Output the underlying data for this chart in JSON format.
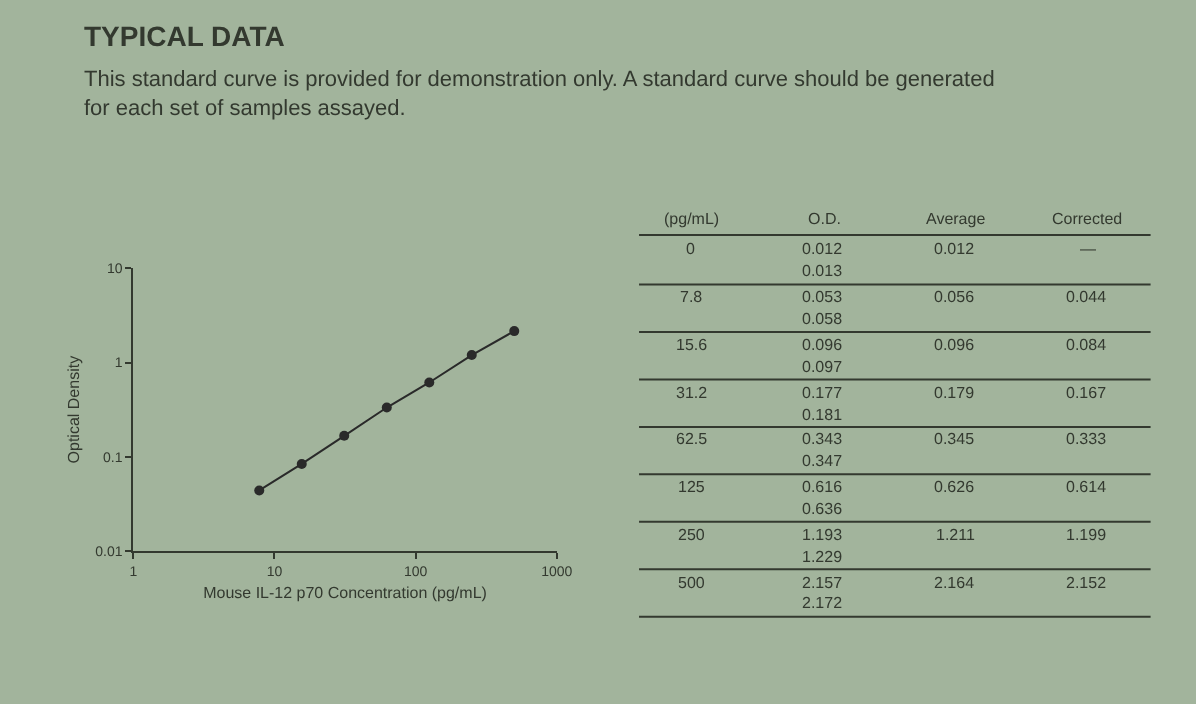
{
  "chart_data": [
    {
      "type": "line",
      "title": "TYPICAL DATA",
      "subtitle": "This standard curve is provided for demonstration only. A standard curve should be generated for each set of samples assayed.",
      "xlabel": "Mouse IL-12 p70 Concentration (pg/mL)",
      "ylabel": "Optical Density",
      "log": "xy",
      "x": [
        7.8,
        15.6,
        31.2,
        62.5,
        125,
        250,
        500
      ],
      "series": [
        {
          "color": "#2a2a2a",
          "values": [
            0.044,
            0.084,
            0.167,
            0.333,
            0.614,
            1.199,
            2.152
          ]
        }
      ],
      "xlim": [
        1,
        1000
      ],
      "xticks": [
        1,
        10,
        100,
        1000
      ],
      "ylim": [
        0.01,
        10
      ],
      "yticks": [
        0.01,
        0.1,
        1,
        10
      ],
      "marker": "circle",
      "line_style": "solid",
      "grid": false
    },
    {
      "type": "other",
      "data_labels": true,
      "xlabel": "(pg/mL)",
      "categories": [
        "0",
        "7.8",
        "15.6",
        "31.2",
        "62.5",
        "125",
        "250",
        "500"
      ],
      "series": [
        {
          "name": "O.D.",
          "values": [
            0.012,
            0.053,
            0.096,
            0.177,
            0.343,
            0.616,
            1.193,
            2.157
          ]
        },
        {
          "values": [
            0.013,
            0.058,
            0.097,
            0.181,
            0.347,
            0.636,
            1.229,
            2.172
          ]
        },
        {
          "name": "Average",
          "values": [
            0.012,
            0.056,
            0.096,
            0.179,
            0.345,
            0.626,
            1.211,
            2.164
          ]
        },
        {
          "name": "Corrected",
          "values": [
            null,
            0.044,
            0.084,
            0.167,
            0.333,
            0.614,
            1.199,
            2.152
          ],
          "value_labels": [
            "—",
            "0.044",
            "0.084",
            "0.167",
            "0.333",
            "0.614",
            "1.199",
            "2.152"
          ]
        }
      ]
    }
  ]
}
